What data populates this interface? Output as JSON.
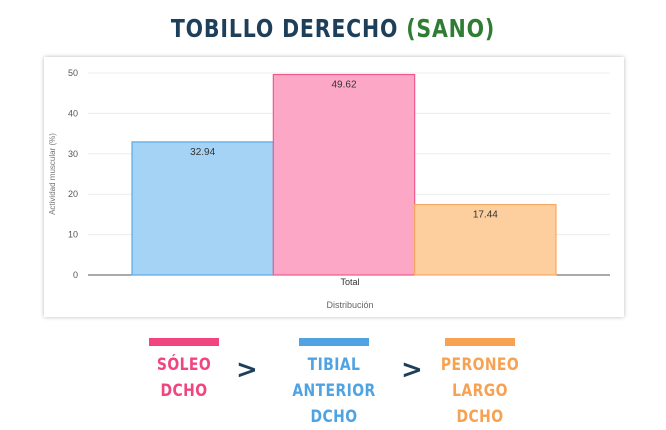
{
  "title": {
    "main": "TOBILLO DERECHO",
    "tag": "(SANO)"
  },
  "chart_data": {
    "type": "bar",
    "categories": [
      "Total"
    ],
    "series": [
      {
        "name": "SÓLEO DCHO",
        "values": [
          32.94
        ],
        "fill": "#a5d3f5",
        "stroke": "#5ba9e6"
      },
      {
        "name": "TIBIAL ANTERIOR DCHO",
        "values": [
          49.62
        ],
        "fill": "#fda7c7",
        "stroke": "#ef5a8e"
      },
      {
        "name": "PERONEO LARGO DCHO",
        "values": [
          17.44
        ],
        "fill": "#fdcf9f",
        "stroke": "#f6a960"
      }
    ],
    "data_labels": [
      "32.94",
      "49.62",
      "17.44"
    ],
    "xlabel": "Distribución",
    "ylabel": "Actividad muscular (%)",
    "ylim": [
      0,
      50
    ],
    "yticks": [
      "0",
      "10",
      "20",
      "30",
      "40",
      "50"
    ],
    "grid": true
  },
  "legend": [
    {
      "line1": "SÓLEO",
      "line2": "DCHO",
      "color": "#f0457f"
    },
    {
      "line1": "TIBIAL ANTERIOR",
      "line2": "DCHO",
      "color": "#4fa3e3"
    },
    {
      "line1": "PERONEO LARGO",
      "line2": "DCHO",
      "color": "#f7a252"
    }
  ],
  "separators": [
    ">",
    ">"
  ]
}
